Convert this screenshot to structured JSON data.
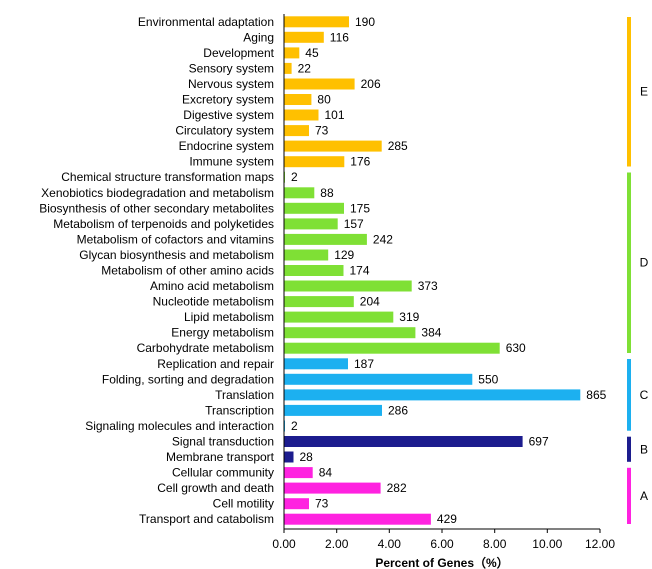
{
  "chart_data": {
    "type": "bar",
    "orientation": "horizontal",
    "xlabel": "Percent of Genes（%）",
    "xlim": [
      0,
      12
    ],
    "xticks": [
      "0.00",
      "2.00",
      "4.00",
      "6.00",
      "8.00",
      "10.00",
      "12.00"
    ],
    "grid": false,
    "categories": [
      "Environmental adaptation",
      "Aging",
      "Development",
      "Sensory system",
      "Nervous system",
      "Excretory system",
      "Digestive system",
      "Circulatory system",
      "Endocrine system",
      "Immune system",
      "Chemical structure transformation maps",
      "Xenobiotics biodegradation and metabolism",
      "Biosynthesis of other secondary metabolites",
      "Metabolism of terpenoids and polyketides",
      "Metabolism of cofactors and vitamins",
      "Glycan biosynthesis and metabolism",
      "Metabolism of other amino acids",
      "Amino acid metabolism",
      "Nucleotide metabolism",
      "Lipid metabolism",
      "Energy metabolism",
      "Carbohydrate metabolism",
      "Replication and repair",
      "Folding, sorting and degradation",
      "Translation",
      "Transcription",
      "Signaling molecules and interaction",
      "Signal transduction",
      "Membrane transport",
      "Cellular community",
      "Cell growth and death",
      "Cell motility",
      "Transport and catabolism"
    ],
    "values": [
      2.47,
      1.51,
      0.58,
      0.29,
      2.68,
      1.04,
      1.31,
      0.95,
      3.71,
      2.29,
      0.03,
      1.15,
      2.28,
      2.04,
      3.15,
      1.68,
      2.26,
      4.85,
      2.65,
      4.15,
      4.99,
      8.19,
      2.43,
      7.15,
      11.25,
      3.72,
      0.03,
      9.06,
      0.36,
      1.09,
      3.67,
      0.95,
      5.58
    ],
    "counts": [
      "190",
      "116",
      "45",
      "22",
      "206",
      "80",
      "101",
      "73",
      "285",
      "176",
      "2",
      "88",
      "175",
      "157",
      "242",
      "129",
      "174",
      "373",
      "204",
      "319",
      "384",
      "630",
      "187",
      "550",
      "865",
      "286",
      "2",
      "697",
      "28",
      "84",
      "282",
      "73",
      "429"
    ],
    "groups": [
      {
        "label": "E",
        "color": "#FFC000",
        "start": 0,
        "end": 9
      },
      {
        "label": "D",
        "color": "#7FE035",
        "start": 10,
        "end": 21
      },
      {
        "label": "C",
        "color": "#1CB0F0",
        "start": 22,
        "end": 26
      },
      {
        "label": "B",
        "color": "#1C1C8E",
        "start": 27,
        "end": 28
      },
      {
        "label": "A",
        "color": "#FF22E0",
        "start": 29,
        "end": 32
      }
    ]
  }
}
